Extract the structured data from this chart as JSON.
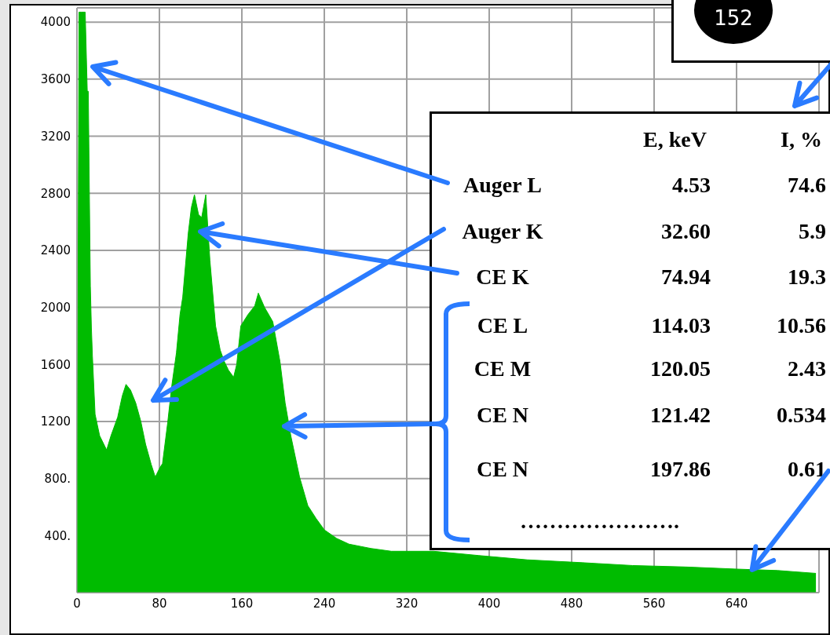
{
  "chart_data": {
    "type": "area",
    "color": "#00bb00",
    "x": [
      0,
      2,
      4,
      8,
      10,
      11,
      13,
      14,
      15,
      17.6,
      22,
      28.8,
      33,
      39.5,
      44,
      47.6,
      52,
      57,
      62,
      66.6,
      72,
      76,
      80,
      83,
      88,
      92,
      96.5,
      100,
      102.6,
      108,
      111,
      114,
      118,
      121,
      125,
      129,
      134.5,
      139,
      143,
      147,
      152,
      155,
      159,
      166,
      172.5,
      176,
      182,
      190,
      197,
      202,
      207.5,
      216,
      224,
      232,
      240,
      252,
      264,
      285,
      305,
      336,
      346,
      390,
      437,
      490,
      539,
      590,
      640,
      680,
      717
    ],
    "values": [
      0,
      4070,
      4070,
      4070,
      3515,
      3515,
      2150,
      1860,
      1660,
      1250,
      1100,
      1000,
      1100,
      1230,
      1380,
      1460,
      1420,
      1330,
      1200,
      1040,
      900,
      810,
      870,
      905,
      1190,
      1450,
      1680,
      1950,
      2070,
      2520,
      2700,
      2790,
      2650,
      2630,
      2790,
      2330,
      1870,
      1700,
      1620,
      1560,
      1510,
      1600,
      1870,
      1950,
      2010,
      2100,
      2000,
      1900,
      1620,
      1330,
      1100,
      810,
      610,
      520,
      440,
      380,
      340,
      310,
      290,
      290,
      290,
      260,
      230,
      210,
      190,
      180,
      165,
      155,
      135
    ],
    "xlim": [
      0,
      720
    ],
    "ylim": [
      0,
      4100
    ],
    "xticks": [
      0,
      80,
      160,
      240,
      320,
      400,
      480,
      560,
      640
    ],
    "yticks": [
      {
        "value": 400,
        "label": "400."
      },
      {
        "value": 800,
        "label": "800."
      },
      1200,
      1600,
      2000,
      2400,
      2800,
      3200,
      3600,
      4000
    ],
    "grid": true,
    "annotations": [
      "152",
      "E, keV",
      "I, %",
      "Auger L",
      "4.53",
      "74.6",
      "Auger K",
      "32.60",
      "5.9",
      "CE K",
      "74.94",
      "19.3",
      "CE L",
      "114.03",
      "10.56",
      "CE M",
      "120.05",
      "2.43",
      "CE N",
      "121.42",
      "0.534",
      "CE N",
      "197.86",
      {
        "text": "0.61",
        "x": 655,
        "y": 160
      },
      "…………………."
    ]
  }
}
